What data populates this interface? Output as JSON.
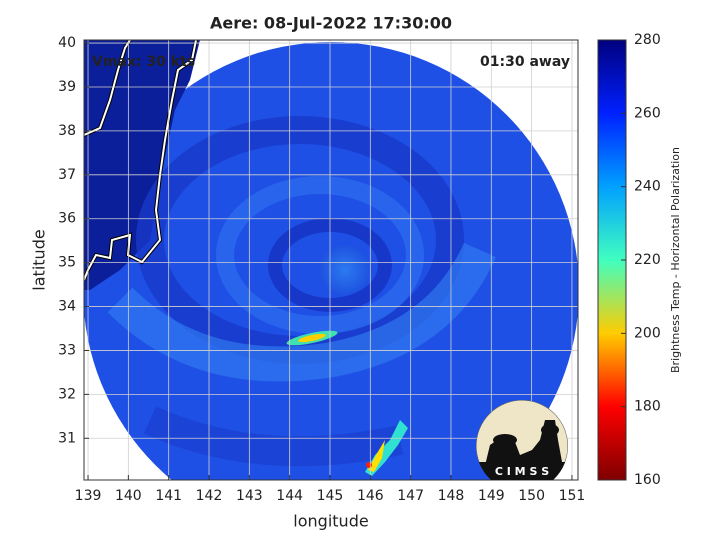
{
  "chart_data": {
    "type": "image",
    "title": "Aere: 08-Jul-2022 17:30:00",
    "annotations": [
      "Vmax: 30 kts",
      "01:30 away"
    ],
    "xlabel": "longitude",
    "ylabel": "latitude",
    "xlim": [
      138.9,
      151.15
    ],
    "xticks": [
      139,
      140,
      141,
      142,
      143,
      144,
      145,
      146,
      147,
      148,
      149,
      150,
      151
    ],
    "ylim": [
      30.05,
      40.07
    ],
    "yticks": [
      31,
      32,
      33,
      34,
      35,
      36,
      37,
      38,
      39,
      40
    ],
    "grid": true,
    "colorbar": {
      "label": "Brightness Temp - Horizontal Polarization",
      "clim": [
        160,
        280
      ],
      "ticks": [
        160,
        180,
        200,
        220,
        240,
        260,
        280
      ],
      "colormap": [
        "#7f0000",
        "#ff0000",
        "#ffcc00",
        "#40ffc0",
        "#00a0ff",
        "#0020ff",
        "#00007f"
      ]
    },
    "logo_text": "C I M S S"
  }
}
